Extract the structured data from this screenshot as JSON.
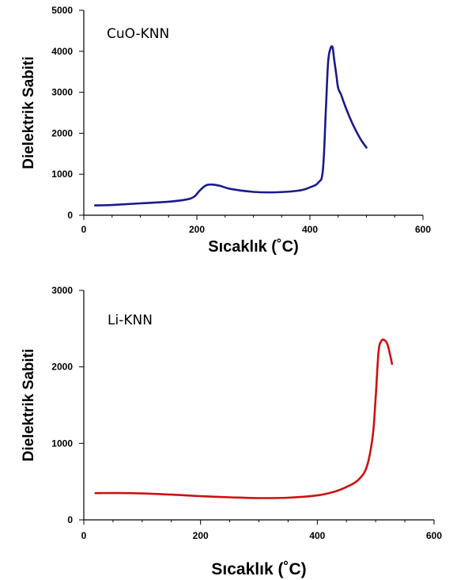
{
  "chart_data": [
    {
      "type": "line",
      "title": "CuO-KNN",
      "xlabel": "Sıcaklık (˚C)",
      "ylabel": "Dielektrik Sabiti",
      "xlim": [
        0,
        600
      ],
      "ylim": [
        0,
        5000
      ],
      "x_ticks": [
        "0",
        "200",
        "400",
        "600"
      ],
      "y_ticks": [
        "0",
        "1000",
        "2000",
        "3000",
        "4000",
        "5000"
      ],
      "grid": false,
      "color": "#1a1a8c",
      "series": [
        {
          "x": [
            20,
            50,
            100,
            150,
            180,
            195,
            205,
            215,
            225,
            240,
            260,
            300,
            340,
            380,
            400,
            415,
            423,
            428,
            432,
            436,
            440,
            443,
            447,
            450,
            455,
            460,
            470,
            480,
            490,
            500
          ],
          "y": [
            240,
            250,
            290,
            330,
            380,
            450,
            600,
            720,
            750,
            720,
            640,
            570,
            560,
            600,
            680,
            800,
            1100,
            2500,
            3700,
            4050,
            4100,
            3800,
            3400,
            3100,
            2950,
            2750,
            2400,
            2100,
            1850,
            1650
          ]
        }
      ]
    },
    {
      "type": "line",
      "title": "Li-KNN",
      "xlabel": "Sıcaklık (˚C)",
      "ylabel": "Dielektrik Sabiti",
      "xlim": [
        0,
        600
      ],
      "ylim": [
        0,
        3000
      ],
      "x_ticks": [
        "0",
        "200",
        "400",
        "600"
      ],
      "y_ticks": [
        "0",
        "1000",
        "2000",
        "3000"
      ],
      "grid": false,
      "color": "#cc1111",
      "series": [
        {
          "x": [
            20,
            80,
            150,
            200,
            250,
            300,
            350,
            400,
            430,
            450,
            470,
            485,
            495,
            500,
            505,
            510,
            515,
            520,
            525,
            528
          ],
          "y": [
            350,
            350,
            330,
            310,
            295,
            285,
            290,
            320,
            370,
            430,
            520,
            700,
            1100,
            1600,
            2200,
            2340,
            2350,
            2300,
            2150,
            2040
          ]
        }
      ]
    }
  ]
}
